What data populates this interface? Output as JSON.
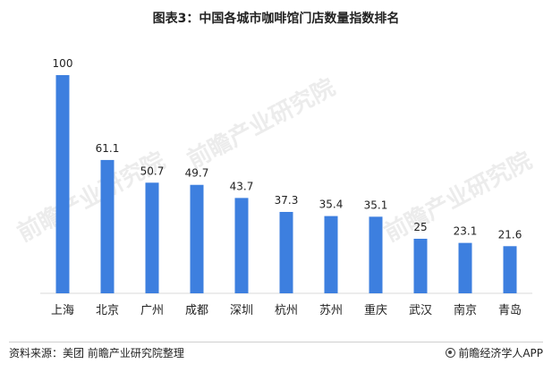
{
  "title": "图表3：中国各城市咖啡馆门店数量指数排名",
  "chart_data": {
    "type": "bar",
    "categories": [
      "上海",
      "北京",
      "广州",
      "成都",
      "深圳",
      "杭州",
      "苏州",
      "重庆",
      "武汉",
      "南京",
      "青岛"
    ],
    "values": [
      100,
      61.1,
      50.7,
      49.7,
      43.7,
      37.3,
      35.4,
      35.1,
      25,
      23.1,
      21.6
    ],
    "value_labels": [
      "100",
      "61.1",
      "50.7",
      "49.7",
      "43.7",
      "37.3",
      "35.4",
      "35.1",
      "25",
      "23.1",
      "21.6"
    ],
    "ylim": [
      0,
      100
    ],
    "bar_color": "#3d7fdf",
    "grid": false
  },
  "watermark": "前瞻产业研究院",
  "footer": {
    "source": "资料来源：美团 前瞻产业研究院整理",
    "brand": "前瞻经济学人APP"
  }
}
